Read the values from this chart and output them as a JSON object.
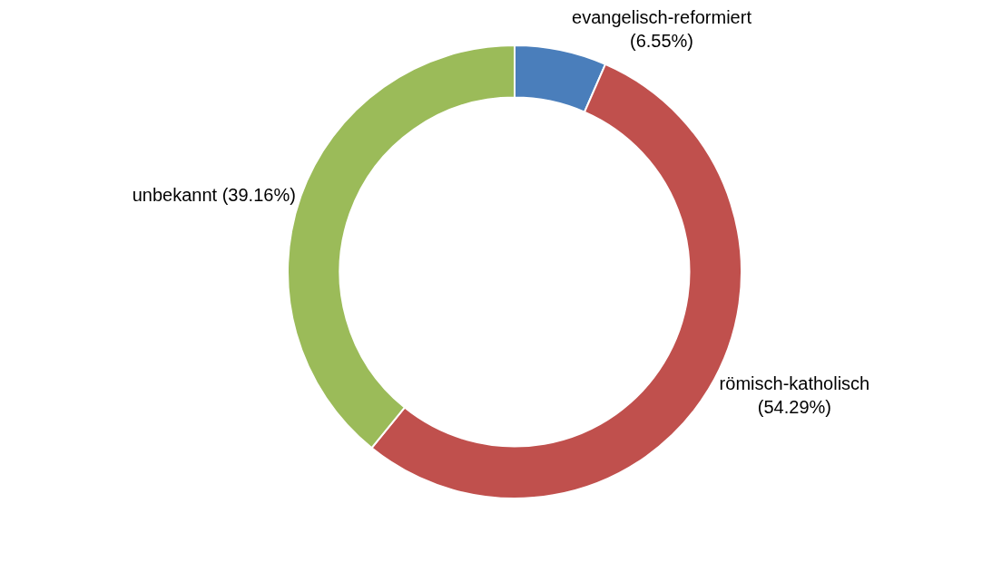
{
  "chart_data": {
    "type": "donut",
    "categories": [
      "evangelisch-reformiert",
      "römisch-katholisch",
      "unbekannt"
    ],
    "values": [
      6.55,
      54.29,
      39.16
    ],
    "value_labels": [
      "(6.55%)",
      "(54.29%)",
      "(39.16%)"
    ],
    "colors": [
      "#4a7ebb",
      "#c0504d",
      "#9bbb59"
    ],
    "legend": false
  }
}
